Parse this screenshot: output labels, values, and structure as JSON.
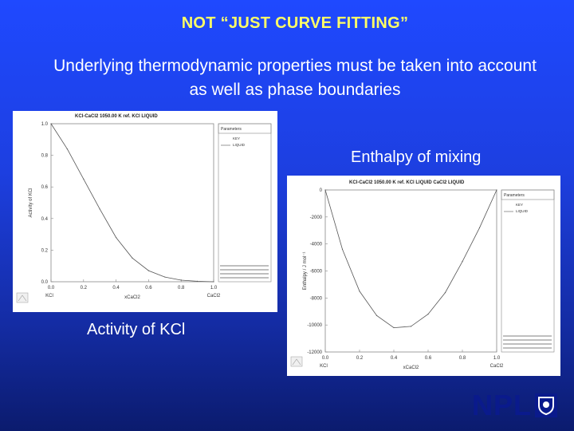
{
  "slide": {
    "title": "NOT “JUST CURVE FITTING”",
    "subtitle_line1": "Underlying thermodynamic properties must be taken into account",
    "subtitle_line2": "as well as phase boundaries",
    "label_enthalpy": "Enthalpy of mixing",
    "label_activity": "Activity of KCl",
    "logo_text": "NPL",
    "colors": {
      "title": "#ffff66",
      "text": "#ffffff",
      "background_top": "#1f49ff",
      "background_bottom": "#0b1b6e",
      "logo": "#0a1a8c"
    }
  },
  "chart_data": [
    {
      "type": "line",
      "title": "KCl-CaCl2 1050.00 K ref. KCl LIQUID",
      "xlabel": "xCaCl2",
      "ylabel": "Activity of KCl",
      "xlim": [
        0.0,
        1.0
      ],
      "ylim": [
        0.0,
        1.0
      ],
      "x_ticks": [
        "0.0",
        "0.2",
        "0.4",
        "0.6",
        "0.8",
        "1.0"
      ],
      "y_ticks": [
        "0.0",
        "0.2",
        "0.4",
        "0.6",
        "0.8",
        "1.0"
      ],
      "end_labels": [
        "KCl",
        "CaCl2"
      ],
      "legend": {
        "placement": "top-right",
        "title": "Parameters",
        "entries": [
          "KEY",
          "LIQUID"
        ]
      },
      "x": [
        0.0,
        0.1,
        0.2,
        0.3,
        0.4,
        0.5,
        0.6,
        0.7,
        0.8,
        0.9,
        1.0
      ],
      "y": [
        1.0,
        0.84,
        0.65,
        0.46,
        0.28,
        0.15,
        0.07,
        0.03,
        0.01,
        0.003,
        0.0
      ]
    },
    {
      "type": "line",
      "title": "KCl-CaCl2 1050.00 K ref. KCl LIQUID CaCl2 LIQUID",
      "xlabel": "xCaCl2",
      "ylabel": "Enthalpy / J mol⁻¹",
      "xlim": [
        0.0,
        1.0
      ],
      "ylim": [
        -12000,
        0
      ],
      "x_ticks": [
        "0.0",
        "0.2",
        "0.4",
        "0.6",
        "0.8",
        "1.0"
      ],
      "y_ticks": [
        "0",
        "-2000",
        "-4000",
        "-6000",
        "-8000",
        "-10000",
        "-12000"
      ],
      "end_labels": [
        "KCl",
        "CaCl2"
      ],
      "legend": {
        "placement": "top-right",
        "title": "Parameters",
        "entries": [
          "KEY",
          "LIQUID"
        ]
      },
      "x": [
        0.0,
        0.1,
        0.2,
        0.3,
        0.4,
        0.5,
        0.6,
        0.7,
        0.8,
        0.9,
        1.0
      ],
      "y": [
        0,
        -4400,
        -7500,
        -9300,
        -10200,
        -10100,
        -9200,
        -7600,
        -5300,
        -2800,
        0
      ]
    }
  ]
}
